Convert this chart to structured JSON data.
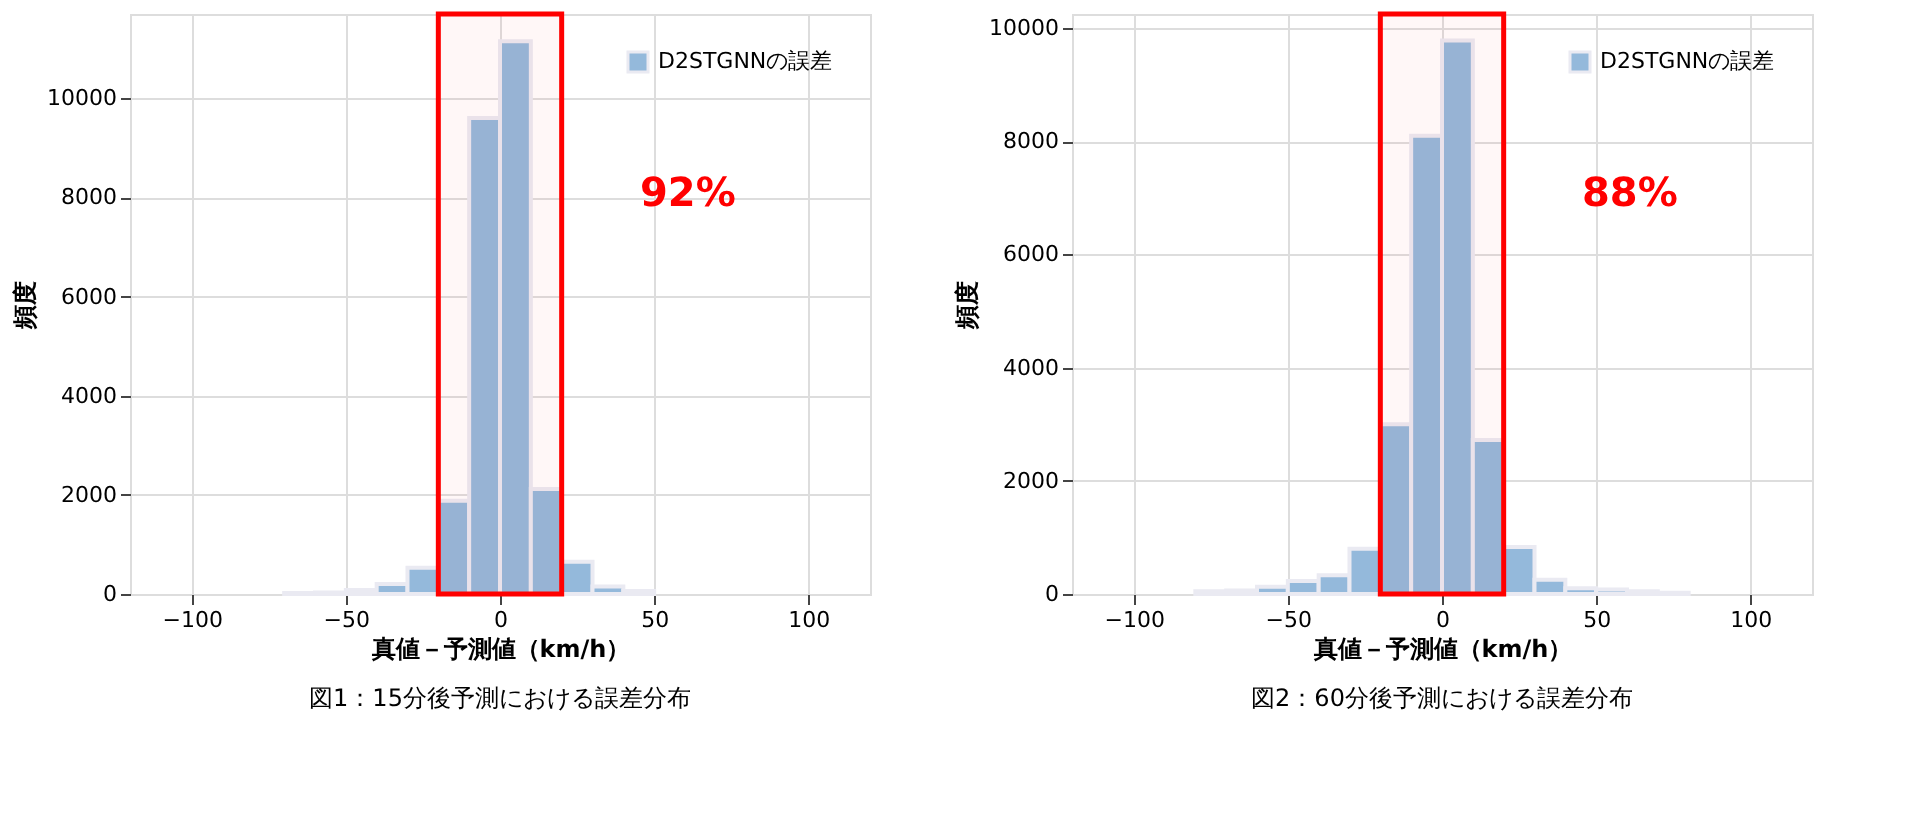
{
  "chart_data": [
    {
      "type": "histogram",
      "xlabel": "真値－予測値（km/h）",
      "ylabel": "頻度",
      "bins": [
        -70,
        -60,
        -50,
        -40,
        -30,
        -20,
        -10,
        0,
        10,
        20,
        30,
        40,
        50
      ],
      "series": [
        {
          "name": "D2STGNNの誤差",
          "color": "#94b9db",
          "values": [
            20,
            30,
            80,
            200,
            530,
            1880,
            9600,
            11150,
            2120,
            650,
            150,
            60
          ]
        }
      ],
      "xlim": [
        -120,
        120
      ],
      "xticks": [
        -100,
        -50,
        0,
        50,
        100
      ],
      "ylim": [
        0,
        11700
      ],
      "yticks": [
        0,
        2000,
        4000,
        6000,
        8000,
        10000
      ],
      "bands": [
        {
          "axis": "x",
          "from": -20,
          "to": 20,
          "color": "#ff0000"
        }
      ],
      "annotations": [
        "92%",
        "図1：15分後予測における誤差分布"
      ],
      "grid": true,
      "legend": "top right"
    },
    {
      "type": "histogram",
      "xlabel": "真値－予測値（km/h）",
      "ylabel": "頻度",
      "bins": [
        -80,
        -70,
        -60,
        -50,
        -40,
        -30,
        -20,
        -10,
        0,
        10,
        20,
        30,
        40,
        50,
        60,
        70,
        80
      ],
      "series": [
        {
          "name": "D2STGNNの誤差",
          "color": "#94b9db",
          "values": [
            50,
            60,
            130,
            230,
            330,
            800,
            3000,
            8100,
            9780,
            2720,
            830,
            250,
            100,
            80,
            50,
            20
          ]
        }
      ],
      "xlim": [
        -120,
        120
      ],
      "xticks": [
        -100,
        -50,
        0,
        50,
        100
      ],
      "ylim": [
        0,
        10250
      ],
      "yticks": [
        0,
        2000,
        4000,
        6000,
        8000,
        10000
      ],
      "bands": [
        {
          "axis": "x",
          "from": -20,
          "to": 20,
          "color": "#ff0000"
        }
      ],
      "annotations": [
        "88%",
        "図2：60分後予測における誤差分布"
      ],
      "grid": true,
      "legend": "top right"
    }
  ]
}
